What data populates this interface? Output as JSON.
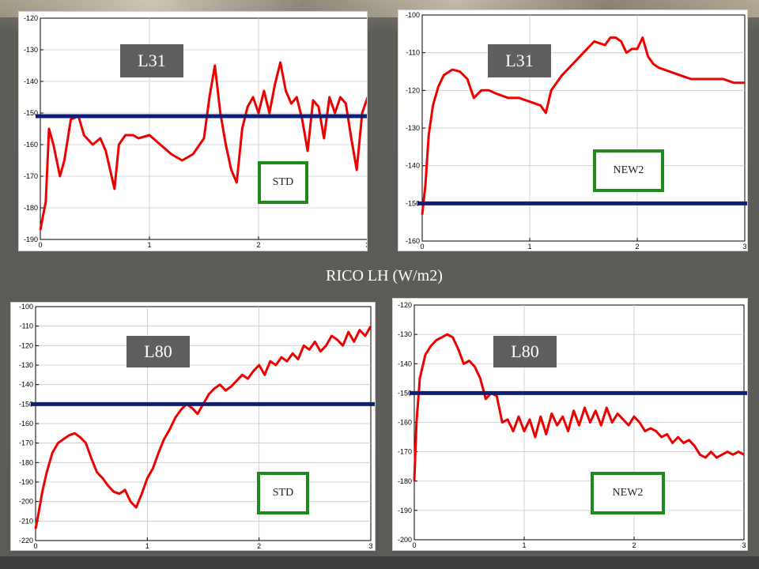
{
  "title": "RICO LH (W/m2)",
  "colors": {
    "curve": "#ee0000",
    "reference_line": "#0b1e7a",
    "badge_gray": "#5f5f5f",
    "badge_green_border": "#1e8a1e"
  },
  "chart_data": [
    {
      "type": "line",
      "run": "L31",
      "scheme": "STD",
      "ylim": [
        -190,
        -120
      ],
      "xlim": [
        0,
        3
      ],
      "xticks": [
        "0",
        "1",
        "2",
        "3"
      ],
      "yticks": [
        "-120",
        "-130",
        "-140",
        "-150",
        "-160",
        "-170",
        "-180",
        "-190"
      ],
      "reference_value": -151,
      "x": [
        0,
        0.05,
        0.08,
        0.12,
        0.18,
        0.22,
        0.28,
        0.35,
        0.4,
        0.48,
        0.55,
        0.6,
        0.68,
        0.72,
        0.78,
        0.85,
        0.9,
        1.0,
        1.1,
        1.2,
        1.3,
        1.4,
        1.5,
        1.55,
        1.6,
        1.65,
        1.7,
        1.75,
        1.8,
        1.85,
        1.9,
        1.95,
        2.0,
        2.05,
        2.1,
        2.15,
        2.2,
        2.25,
        2.3,
        2.35,
        2.4,
        2.45,
        2.5,
        2.55,
        2.6,
        2.65,
        2.7,
        2.75,
        2.8,
        2.85,
        2.9,
        2.95,
        3.0
      ],
      "y": [
        -187,
        -178,
        -155,
        -160,
        -170,
        -165,
        -152,
        -151,
        -157,
        -160,
        -158,
        -162,
        -174,
        -160,
        -157,
        -157,
        -158,
        -157,
        -160,
        -163,
        -165,
        -163,
        -158,
        -145,
        -135,
        -150,
        -160,
        -168,
        -172,
        -155,
        -148,
        -145,
        -150,
        -143,
        -150,
        -141,
        -134,
        -143,
        -147,
        -145,
        -152,
        -162,
        -146,
        -148,
        -158,
        -145,
        -150,
        -145,
        -147,
        -158,
        -168,
        -150,
        -145
      ]
    },
    {
      "type": "line",
      "run": "L31",
      "scheme": "NEW2",
      "ylim": [
        -160,
        -100
      ],
      "xlim": [
        0,
        3
      ],
      "xticks": [
        "0",
        "1",
        "2",
        "3"
      ],
      "yticks": [
        "-100",
        "-110",
        "-120",
        "-130",
        "-140",
        "-150",
        "-160"
      ],
      "reference_value": -150,
      "x": [
        0,
        0.03,
        0.06,
        0.1,
        0.15,
        0.2,
        0.28,
        0.35,
        0.42,
        0.48,
        0.55,
        0.62,
        0.7,
        0.8,
        0.9,
        1.0,
        1.1,
        1.15,
        1.2,
        1.25,
        1.3,
        1.4,
        1.5,
        1.6,
        1.7,
        1.75,
        1.8,
        1.85,
        1.9,
        1.95,
        2.0,
        2.05,
        2.1,
        2.15,
        2.2,
        2.3,
        2.4,
        2.5,
        2.6,
        2.7,
        2.8,
        2.9,
        3.0
      ],
      "y": [
        -153,
        -145,
        -132,
        -124,
        -119,
        -116,
        -114.5,
        -115,
        -117,
        -122,
        -120,
        -120,
        -121,
        -122,
        -122,
        -123,
        -124,
        -126,
        -120,
        -118,
        -116,
        -113,
        -110,
        -107,
        -108,
        -106,
        -106,
        -107,
        -110,
        -109,
        -109,
        -106,
        -111,
        -113,
        -114,
        -115,
        -116,
        -117,
        -117,
        -117,
        -117,
        -118,
        -118
      ]
    },
    {
      "type": "line",
      "run": "L80",
      "scheme": "STD",
      "ylim": [
        -220,
        -100
      ],
      "xlim": [
        0,
        3
      ],
      "xticks": [
        "0",
        "1",
        "2",
        "3"
      ],
      "yticks": [
        "-100",
        "-110",
        "-120",
        "-130",
        "-140",
        "-150",
        "-160",
        "-170",
        "-180",
        "-190",
        "-200",
        "-210",
        "-220"
      ],
      "reference_value": -150,
      "x": [
        0,
        0.03,
        0.06,
        0.1,
        0.15,
        0.2,
        0.25,
        0.3,
        0.35,
        0.4,
        0.45,
        0.5,
        0.55,
        0.6,
        0.65,
        0.7,
        0.75,
        0.8,
        0.85,
        0.9,
        0.95,
        1.0,
        1.05,
        1.1,
        1.15,
        1.2,
        1.25,
        1.3,
        1.35,
        1.4,
        1.45,
        1.5,
        1.55,
        1.6,
        1.65,
        1.7,
        1.75,
        1.8,
        1.85,
        1.9,
        1.95,
        2.0,
        2.05,
        2.1,
        2.15,
        2.2,
        2.25,
        2.3,
        2.35,
        2.4,
        2.45,
        2.5,
        2.55,
        2.6,
        2.65,
        2.7,
        2.75,
        2.8,
        2.85,
        2.9,
        2.95,
        3.0
      ],
      "y": [
        -214,
        -205,
        -195,
        -185,
        -175,
        -170,
        -168,
        -166,
        -165,
        -167,
        -170,
        -178,
        -185,
        -188,
        -192,
        -195,
        -196,
        -194,
        -200,
        -203,
        -196,
        -188,
        -183,
        -175,
        -168,
        -163,
        -157,
        -153,
        -150,
        -152,
        -155,
        -150,
        -145,
        -142,
        -140,
        -143,
        -141,
        -138,
        -135,
        -137,
        -133,
        -130,
        -135,
        -128,
        -130,
        -126,
        -128,
        -124,
        -127,
        -120,
        -122,
        -118,
        -123,
        -120,
        -115,
        -117,
        -120,
        -113,
        -118,
        -112,
        -115,
        -110
      ]
    },
    {
      "type": "line",
      "run": "L80",
      "scheme": "NEW2",
      "ylim": [
        -200,
        -120
      ],
      "xlim": [
        0,
        3
      ],
      "xticks": [
        "0",
        "1",
        "2",
        "3"
      ],
      "yticks": [
        "-120",
        "-130",
        "-140",
        "-150",
        "-160",
        "-170",
        "-180",
        "-190",
        "-200"
      ],
      "reference_value": -150,
      "x": [
        0,
        0.02,
        0.05,
        0.1,
        0.15,
        0.2,
        0.25,
        0.3,
        0.35,
        0.4,
        0.45,
        0.5,
        0.55,
        0.6,
        0.65,
        0.7,
        0.75,
        0.8,
        0.85,
        0.9,
        0.95,
        1.0,
        1.05,
        1.1,
        1.15,
        1.2,
        1.25,
        1.3,
        1.35,
        1.4,
        1.45,
        1.5,
        1.55,
        1.6,
        1.65,
        1.7,
        1.75,
        1.8,
        1.85,
        1.9,
        1.95,
        2.0,
        2.05,
        2.1,
        2.15,
        2.2,
        2.25,
        2.3,
        2.35,
        2.4,
        2.45,
        2.5,
        2.55,
        2.6,
        2.65,
        2.7,
        2.75,
        2.8,
        2.85,
        2.9,
        2.95,
        3.0
      ],
      "y": [
        -180,
        -160,
        -145,
        -137,
        -134,
        -132,
        -131,
        -130,
        -131,
        -135,
        -140,
        -139,
        -141,
        -145,
        -152,
        -150,
        -151,
        -160,
        -159,
        -163,
        -158,
        -163,
        -159,
        -165,
        -158,
        -164,
        -157,
        -161,
        -158,
        -163,
        -156,
        -161,
        -155,
        -160,
        -156,
        -161,
        -155,
        -160,
        -157,
        -159,
        -161,
        -158,
        -160,
        -163,
        -162,
        -163,
        -165,
        -164,
        -167,
        -165,
        -167,
        -166,
        -168,
        -171,
        -172,
        -170,
        -172,
        -171,
        -170,
        -171,
        -170,
        -171
      ]
    }
  ]
}
